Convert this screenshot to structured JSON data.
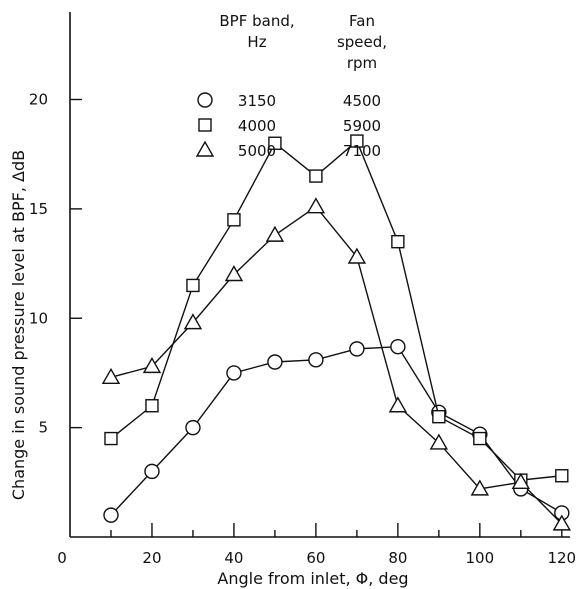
{
  "chart_data": {
    "type": "line",
    "xlabel": "Angle from inlet, Φ, deg",
    "ylabel": "Change in sound pressure level at BPF, ΔdB",
    "xlim": [
      0,
      122
    ],
    "ylim": [
      0,
      24
    ],
    "x_ticks": [
      0,
      20,
      40,
      60,
      80,
      100,
      120
    ],
    "x_minor_ticks": [
      10,
      30,
      50,
      70,
      90,
      110
    ],
    "y_ticks": [
      5,
      10,
      15,
      20
    ],
    "legend": {
      "placement": "top-center",
      "headers": [
        "BPF band,\nHz",
        "Fan\nspeed,\nrpm"
      ],
      "rows": [
        {
          "marker": "circle",
          "bpf": "3150",
          "speed": "4500"
        },
        {
          "marker": "square",
          "bpf": "4000",
          "speed": "5900"
        },
        {
          "marker": "triangle",
          "bpf": "5000",
          "speed": "7100"
        }
      ]
    },
    "series": [
      {
        "marker": "circle",
        "x": [
          10,
          20,
          30,
          40,
          50,
          60,
          70,
          80,
          90,
          100,
          110,
          120
        ],
        "y": [
          1.0,
          3.0,
          5.0,
          7.5,
          8.0,
          8.1,
          8.6,
          8.7,
          5.7,
          4.7,
          2.2,
          1.1
        ]
      },
      {
        "marker": "square",
        "x": [
          10,
          20,
          30,
          40,
          50,
          60,
          70,
          80,
          90,
          100,
          110,
          120
        ],
        "y": [
          4.5,
          6.0,
          11.5,
          14.5,
          18.0,
          16.5,
          18.1,
          13.5,
          5.5,
          4.5,
          2.6,
          2.8
        ]
      },
      {
        "marker": "triangle",
        "x": [
          10,
          20,
          30,
          40,
          50,
          60,
          70,
          80,
          90,
          100,
          110,
          120
        ],
        "y": [
          7.3,
          7.8,
          9.8,
          12.0,
          13.8,
          15.1,
          12.8,
          6.0,
          4.3,
          2.2,
          2.5,
          0.6
        ]
      }
    ]
  }
}
